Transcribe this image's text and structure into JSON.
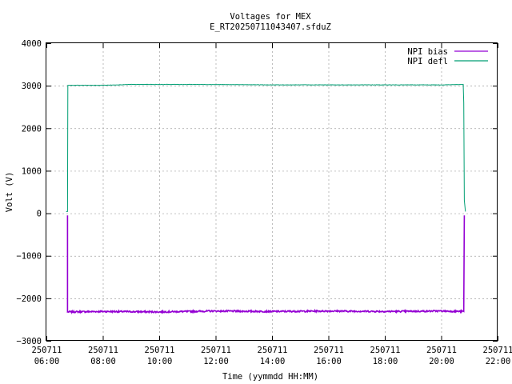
{
  "chart_data": {
    "type": "line",
    "title": "Voltages for MEX",
    "subtitle": "E_RT20250711043407.sfduZ",
    "xlabel": "Time (yymmdd HH:MM)",
    "ylabel": "Volt (V)",
    "xlim": [
      "2025-07-11 06:00",
      "2025-07-11 22:00"
    ],
    "ylim": [
      -3000,
      4000
    ],
    "x_ticks": [
      {
        "date": "250711",
        "time": "06:00",
        "hours": 6
      },
      {
        "date": "250711",
        "time": "08:00",
        "hours": 8
      },
      {
        "date": "250711",
        "time": "10:00",
        "hours": 10
      },
      {
        "date": "250711",
        "time": "12:00",
        "hours": 12
      },
      {
        "date": "250711",
        "time": "14:00",
        "hours": 14
      },
      {
        "date": "250711",
        "time": "16:00",
        "hours": 16
      },
      {
        "date": "250711",
        "time": "18:00",
        "hours": 18
      },
      {
        "date": "250711",
        "time": "20:00",
        "hours": 20
      },
      {
        "date": "250711",
        "time": "22:00",
        "hours": 22
      }
    ],
    "y_ticks": [
      4000,
      3000,
      2000,
      1000,
      0,
      -1000,
      -2000,
      -3000
    ],
    "grid": true,
    "legend_position": "top-right",
    "series": [
      {
        "name": "NPI bias",
        "color": "#9400d3",
        "points": [
          {
            "t": 6.75,
            "v": -50
          },
          {
            "t": 6.75,
            "v": -2320
          },
          {
            "t": 8.0,
            "v": -2310
          },
          {
            "t": 10.0,
            "v": -2320
          },
          {
            "t": 12.0,
            "v": -2300
          },
          {
            "t": 14.0,
            "v": -2310
          },
          {
            "t": 16.0,
            "v": -2300
          },
          {
            "t": 18.0,
            "v": -2310
          },
          {
            "t": 20.0,
            "v": -2300
          },
          {
            "t": 20.8,
            "v": -2310
          },
          {
            "t": 20.82,
            "v": -50
          }
        ]
      },
      {
        "name": "NPI defl",
        "color": "#009e73",
        "points": [
          {
            "t": 6.7,
            "v": 40
          },
          {
            "t": 6.75,
            "v": 40
          },
          {
            "t": 6.76,
            "v": 3010
          },
          {
            "t": 8.0,
            "v": 3010
          },
          {
            "t": 9.0,
            "v": 3030
          },
          {
            "t": 10.0,
            "v": 3030
          },
          {
            "t": 11.5,
            "v": 3030
          },
          {
            "t": 14.0,
            "v": 3020
          },
          {
            "t": 16.0,
            "v": 3020
          },
          {
            "t": 18.0,
            "v": 3020
          },
          {
            "t": 20.0,
            "v": 3020
          },
          {
            "t": 20.78,
            "v": 3030
          },
          {
            "t": 20.8,
            "v": 2600
          },
          {
            "t": 20.82,
            "v": 300
          },
          {
            "t": 20.86,
            "v": 40
          }
        ]
      }
    ]
  }
}
